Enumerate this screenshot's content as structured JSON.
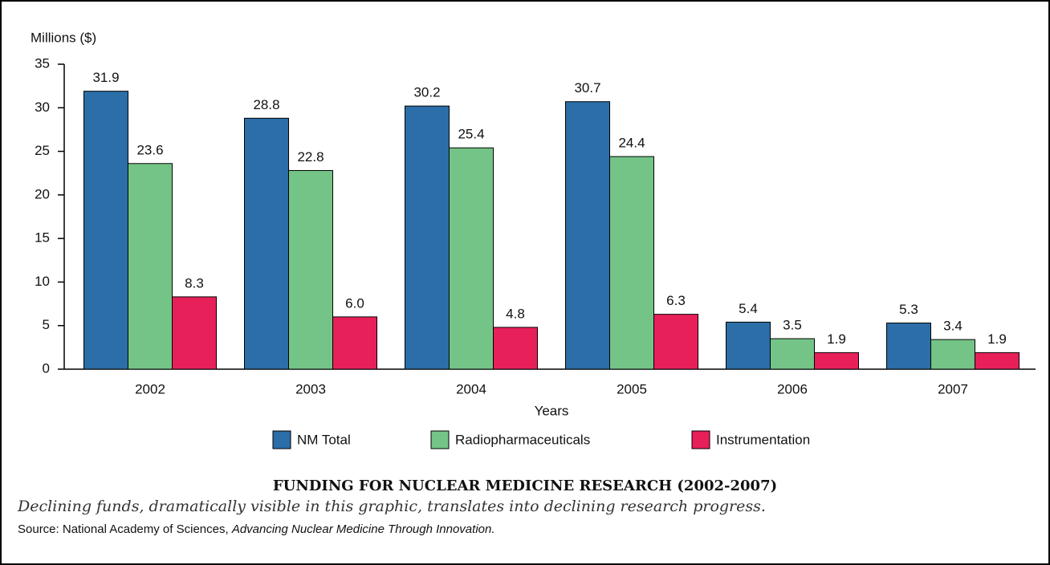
{
  "chart_data": {
    "type": "bar",
    "y_axis_label": "Millions ($)",
    "x_axis_label": "Years",
    "categories": [
      "2002",
      "2003",
      "2004",
      "2005",
      "2006",
      "2007"
    ],
    "series": [
      {
        "name": "NM Total",
        "color": "#2b6ea8",
        "values": [
          31.9,
          28.8,
          30.2,
          30.7,
          5.4,
          5.3
        ],
        "value_labels": [
          "31.9",
          "28.8",
          "30.2",
          "30.7",
          "5.4",
          "5.3"
        ]
      },
      {
        "name": "Radiopharmaceuticals",
        "color": "#74c487",
        "values": [
          23.6,
          22.8,
          25.4,
          24.4,
          3.5,
          3.4
        ],
        "value_labels": [
          "23.6",
          "22.8",
          "25.4",
          "24.4",
          "3.5",
          "3.4"
        ]
      },
      {
        "name": "Instrumentation",
        "color": "#e8205a",
        "values": [
          8.3,
          6.0,
          4.8,
          6.3,
          1.9,
          1.9
        ],
        "value_labels": [
          "8.3",
          "6.0",
          "4.8",
          "6.3",
          "1.9",
          "1.9"
        ]
      }
    ],
    "ylim": [
      0,
      35
    ],
    "yticks": [
      0,
      5,
      10,
      15,
      20,
      25,
      30,
      35
    ],
    "legend": "bottom",
    "title": "FUNDING FOR NUCLEAR MEDICINE RESEARCH (2002-2007)",
    "caption": "Declining funds, dramatically visible in this graphic, translates into declining research progress.",
    "source": "Source: National Academy of Sciences, ",
    "source_title": "Advancing Nuclear Medicine Through Innovation."
  }
}
